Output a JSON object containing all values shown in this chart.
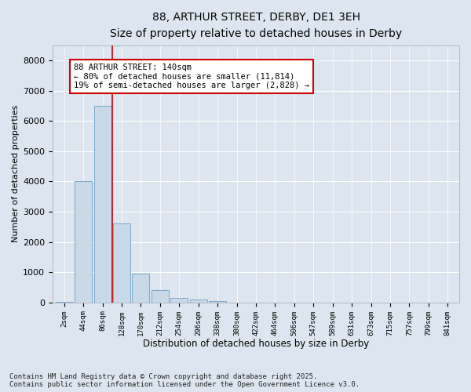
{
  "title1": "88, ARTHUR STREET, DERBY, DE1 3EH",
  "title2": "Size of property relative to detached houses in Derby",
  "xlabel": "Distribution of detached houses by size in Derby",
  "ylabel": "Number of detached properties",
  "categories": [
    "2sqm",
    "44sqm",
    "86sqm",
    "128sqm",
    "170sqm",
    "212sqm",
    "254sqm",
    "296sqm",
    "338sqm",
    "380sqm",
    "422sqm",
    "464sqm",
    "506sqm",
    "547sqm",
    "589sqm",
    "631sqm",
    "673sqm",
    "715sqm",
    "757sqm",
    "799sqm",
    "841sqm"
  ],
  "values": [
    10,
    4000,
    6500,
    2600,
    950,
    400,
    150,
    100,
    50,
    0,
    0,
    0,
    0,
    0,
    0,
    0,
    0,
    0,
    0,
    0,
    0
  ],
  "bar_color": "#c9d9e8",
  "bar_edge_color": "#7aa8cc",
  "vline_color": "#cc0000",
  "annotation_text": "88 ARTHUR STREET: 140sqm\n← 80% of detached houses are smaller (11,814)\n19% of semi-detached houses are larger (2,828) →",
  "annotation_fontsize": 7.5,
  "box_edge_color": "#cc0000",
  "ylim": [
    0,
    8500
  ],
  "yticks": [
    0,
    1000,
    2000,
    3000,
    4000,
    5000,
    6000,
    7000,
    8000
  ],
  "bg_color": "#dde6f0",
  "fig_bg_color": "#dde6f0",
  "footnote": "Contains HM Land Registry data © Crown copyright and database right 2025.\nContains public sector information licensed under the Open Government Licence v3.0.",
  "footnote_fontsize": 6.5,
  "title1_fontsize": 10,
  "title2_fontsize": 9,
  "xlabel_fontsize": 8.5,
  "ylabel_fontsize": 8
}
